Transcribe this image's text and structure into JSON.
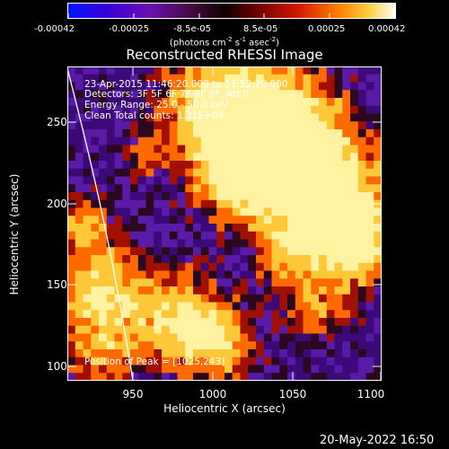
{
  "colorbar": {
    "ticks": [
      "-0.00042",
      "-0.00025",
      "-8.5e-05",
      "8.5e-05",
      "0.00025",
      "0.00042"
    ],
    "units_main": "(photons cm",
    "units_sup1": "-2",
    "units_mid": " s",
    "units_sup2": "-1",
    "units_tail": " asec",
    "units_sup3": "-2",
    "units_close": ")",
    "scale": [
      "#0010ff",
      "#4600c8",
      "#7a0e9a",
      "#3a0a2a",
      "#1c0000",
      "#7e0000",
      "#d02000",
      "#ff8800",
      "#ffd040",
      "#ffffff"
    ]
  },
  "plot": {
    "title": "Reconstructed RHESSI Image",
    "info_lines": [
      "23-Apr-2015 11:46:20.000 to 11:52:20.000",
      "Detectors: 3F 5F 6F 7F 8F 9F, Att 0",
      "Energy Range: 25.0 - 50.0 keV",
      "Clean     Total counts: 1.31E+04"
    ],
    "peak_label": "Position of Peak = [1025,243]",
    "x_ticks": [
      "950",
      "1000",
      "1050",
      "1100"
    ],
    "y_ticks": [
      "100",
      "150",
      "200",
      "250"
    ],
    "xlabel": "Heliocentric X (arcsec)",
    "ylabel": "Heliocentric Y (arcsec)",
    "limb_line": "white",
    "palette": {
      "deep_violet": "#3c0a78",
      "violet": "#5a1aa8",
      "dark": "#2a0820",
      "red": "#a01000",
      "orange": "#ff6a00",
      "yellow": "#ffc838",
      "white": "#fff2a0"
    }
  },
  "footer": {
    "timestamp": "20-May-2022 16:50"
  }
}
